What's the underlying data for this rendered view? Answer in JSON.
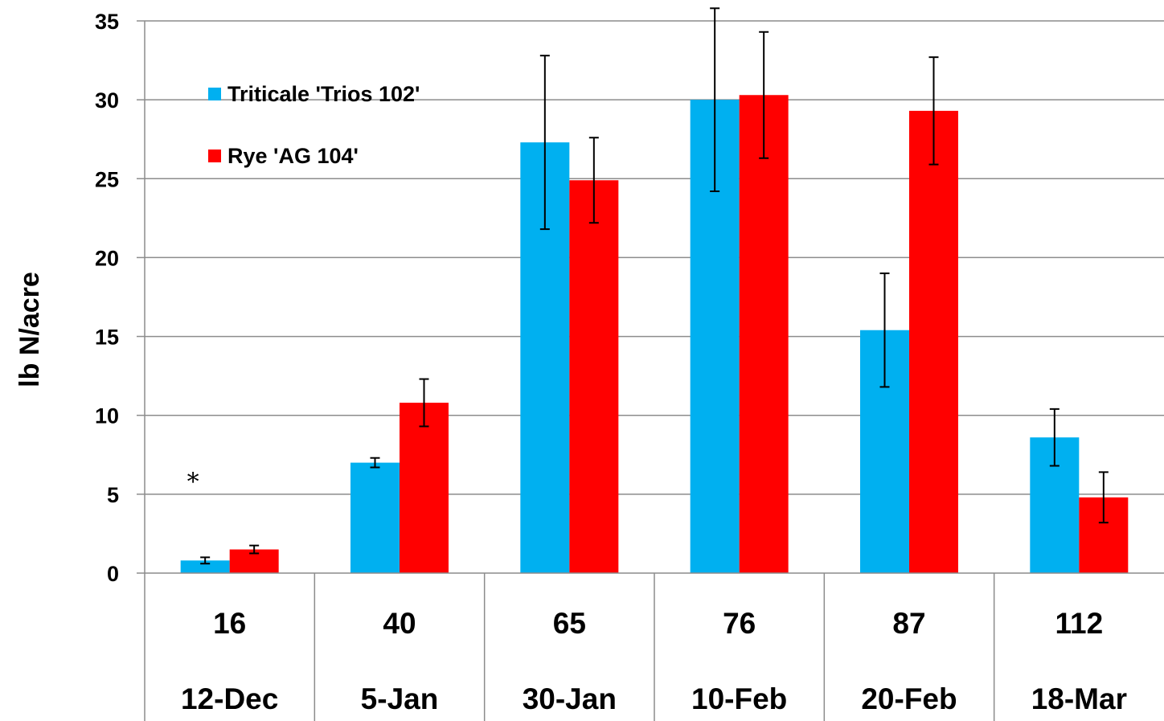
{
  "chart_data": {
    "type": "bar",
    "ylabel": "lb N/acre",
    "ylim": [
      0,
      35
    ],
    "yticks": [
      0,
      5,
      10,
      15,
      20,
      25,
      30,
      35
    ],
    "grid": true,
    "categories": [
      {
        "level1": "16",
        "level2": "12-Dec"
      },
      {
        "level1": "40",
        "level2": "5-Jan"
      },
      {
        "level1": "65",
        "level2": "30-Jan"
      },
      {
        "level1": "76",
        "level2": "10-Feb"
      },
      {
        "level1": "87",
        "level2": "20-Feb"
      },
      {
        "level1": "112",
        "level2": "18-Mar"
      }
    ],
    "series": [
      {
        "name": "Triticale 'Trios 102'",
        "color": "#00B0F0",
        "values": [
          0.8,
          7.0,
          27.3,
          30.0,
          15.4,
          8.6
        ],
        "errors": [
          0.2,
          0.3,
          5.5,
          5.8,
          3.6,
          1.8
        ]
      },
      {
        "name": "Rye 'AG 104'",
        "color": "#FF0000",
        "values": [
          1.5,
          10.8,
          24.9,
          30.3,
          29.3,
          4.8
        ],
        "errors": [
          0.25,
          1.5,
          2.7,
          4.0,
          3.4,
          1.6
        ]
      }
    ],
    "legend_position": "top-left",
    "annotations": [
      {
        "text": "*",
        "category": "16",
        "y": 6.2
      }
    ]
  }
}
